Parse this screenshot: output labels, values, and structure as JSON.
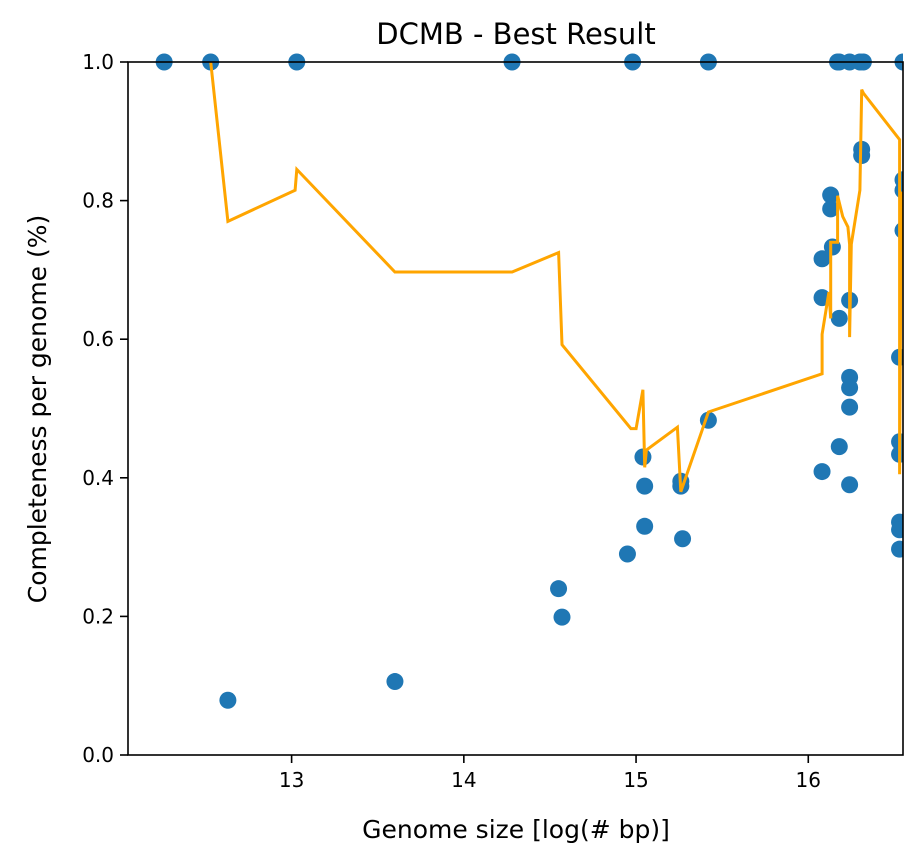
{
  "chart_data": {
    "type": "scatter",
    "title": "DCMB - Best Result",
    "xlabel": "Genome size [log(# bp)]",
    "ylabel": "Completeness per genome (%)",
    "xlim": [
      12.05,
      16.55
    ],
    "ylim": [
      0.0,
      1.0
    ],
    "xticks": [
      13,
      14,
      15,
      16
    ],
    "xtick_labels": [
      "13",
      "14",
      "15",
      "16"
    ],
    "yticks": [
      0.0,
      0.2,
      0.4,
      0.6,
      0.8,
      1.0
    ],
    "ytick_labels": [
      "0.0",
      "0.2",
      "0.4",
      "0.6",
      "0.8",
      "1.0"
    ],
    "grid": false,
    "series": [
      {
        "kind": "scatter",
        "color": "#1f77b4",
        "points": [
          {
            "x": 12.26,
            "y": 1.0
          },
          {
            "x": 12.53,
            "y": 1.0
          },
          {
            "x": 12.63,
            "y": 0.079
          },
          {
            "x": 13.03,
            "y": 1.0
          },
          {
            "x": 13.6,
            "y": 0.106
          },
          {
            "x": 14.28,
            "y": 1.0
          },
          {
            "x": 14.55,
            "y": 0.24
          },
          {
            "x": 14.57,
            "y": 0.199
          },
          {
            "x": 14.95,
            "y": 0.29
          },
          {
            "x": 14.98,
            "y": 1.0
          },
          {
            "x": 15.04,
            "y": 0.43
          },
          {
            "x": 15.05,
            "y": 0.388
          },
          {
            "x": 15.05,
            "y": 0.33
          },
          {
            "x": 15.26,
            "y": 0.395
          },
          {
            "x": 15.26,
            "y": 0.388
          },
          {
            "x": 15.27,
            "y": 0.312
          },
          {
            "x": 15.42,
            "y": 0.483
          },
          {
            "x": 15.42,
            "y": 1.0
          },
          {
            "x": 16.08,
            "y": 0.716
          },
          {
            "x": 16.08,
            "y": 0.66
          },
          {
            "x": 16.08,
            "y": 0.409
          },
          {
            "x": 16.13,
            "y": 0.808
          },
          {
            "x": 16.13,
            "y": 0.788
          },
          {
            "x": 16.14,
            "y": 0.733
          },
          {
            "x": 16.17,
            "y": 1.0
          },
          {
            "x": 16.18,
            "y": 1.0
          },
          {
            "x": 16.18,
            "y": 0.63
          },
          {
            "x": 16.18,
            "y": 0.445
          },
          {
            "x": 16.24,
            "y": 1.0
          },
          {
            "x": 16.24,
            "y": 0.656
          },
          {
            "x": 16.24,
            "y": 0.545
          },
          {
            "x": 16.24,
            "y": 0.53
          },
          {
            "x": 16.24,
            "y": 0.502
          },
          {
            "x": 16.24,
            "y": 0.39
          },
          {
            "x": 16.3,
            "y": 1.0
          },
          {
            "x": 16.32,
            "y": 1.0
          },
          {
            "x": 16.31,
            "y": 0.874
          },
          {
            "x": 16.31,
            "y": 0.865
          },
          {
            "x": 16.53,
            "y": 0.574
          },
          {
            "x": 16.53,
            "y": 0.452
          },
          {
            "x": 16.53,
            "y": 0.434
          },
          {
            "x": 16.53,
            "y": 0.336
          },
          {
            "x": 16.53,
            "y": 0.325
          },
          {
            "x": 16.53,
            "y": 0.297
          },
          {
            "x": 16.55,
            "y": 1.0
          },
          {
            "x": 16.55,
            "y": 0.83
          },
          {
            "x": 16.55,
            "y": 0.815
          },
          {
            "x": 16.55,
            "y": 0.757
          }
        ]
      },
      {
        "kind": "line",
        "color": "#ffa500",
        "points": [
          {
            "x": 12.53,
            "y": 1.0
          },
          {
            "x": 12.63,
            "y": 0.77
          },
          {
            "x": 13.02,
            "y": 0.815
          },
          {
            "x": 13.03,
            "y": 0.845
          },
          {
            "x": 13.6,
            "y": 0.697
          },
          {
            "x": 14.28,
            "y": 0.697
          },
          {
            "x": 14.55,
            "y": 0.725
          },
          {
            "x": 14.57,
            "y": 0.592
          },
          {
            "x": 14.97,
            "y": 0.471
          },
          {
            "x": 15.0,
            "y": 0.471
          },
          {
            "x": 15.04,
            "y": 0.527
          },
          {
            "x": 15.05,
            "y": 0.415
          },
          {
            "x": 15.06,
            "y": 0.44
          },
          {
            "x": 15.24,
            "y": 0.473
          },
          {
            "x": 15.26,
            "y": 0.38
          },
          {
            "x": 15.42,
            "y": 0.495
          },
          {
            "x": 16.08,
            "y": 0.55
          },
          {
            "x": 16.08,
            "y": 0.607
          },
          {
            "x": 16.12,
            "y": 0.668
          },
          {
            "x": 16.13,
            "y": 0.63
          },
          {
            "x": 16.13,
            "y": 0.74
          },
          {
            "x": 16.17,
            "y": 0.74
          },
          {
            "x": 16.17,
            "y": 0.807
          },
          {
            "x": 16.2,
            "y": 0.777
          },
          {
            "x": 16.23,
            "y": 0.762
          },
          {
            "x": 16.24,
            "y": 0.737
          },
          {
            "x": 16.24,
            "y": 0.603
          },
          {
            "x": 16.25,
            "y": 0.737
          },
          {
            "x": 16.3,
            "y": 0.815
          },
          {
            "x": 16.31,
            "y": 0.96
          },
          {
            "x": 16.32,
            "y": 0.955
          },
          {
            "x": 16.53,
            "y": 0.888
          },
          {
            "x": 16.53,
            "y": 0.405
          },
          {
            "x": 16.54,
            "y": 0.813
          },
          {
            "x": 16.55,
            "y": 0.79
          }
        ]
      }
    ]
  }
}
